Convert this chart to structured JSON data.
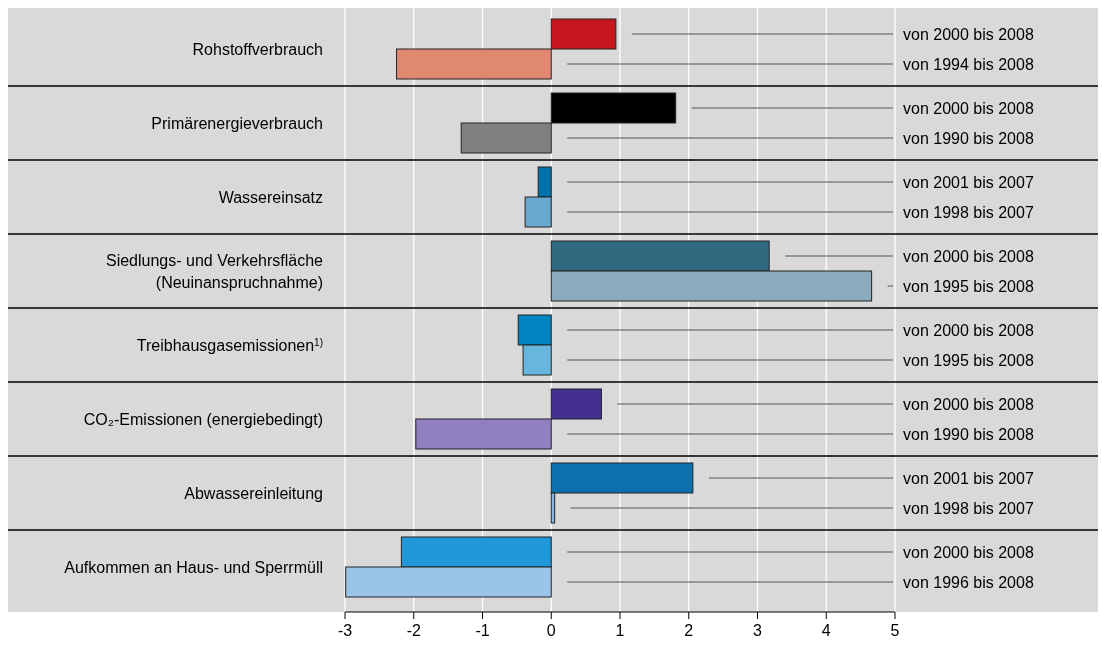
{
  "chart_data": {
    "type": "bar",
    "orientation": "horizontal",
    "categories": [
      "Rohstoffverbrauch",
      "Primärenergieverbrauch",
      "Wassereinsatz",
      "Siedlungs- und Verkehrsfläche\n(Neuinanspruchnahme)",
      "Treibhausgasemissionen$^{1)}$",
      "CO₂-Emissionen (energiebedingt)",
      "Abwassereinleitung",
      "Aufkommen an Haus- und Sperrmüll"
    ],
    "series": [
      {
        "colors": [
          "#c4161c",
          "#000000",
          "#0072ac",
          "#306a80",
          "#0085c0",
          "#453090",
          "#0b70ac",
          "#1e98d8"
        ],
        "values": [
          0.94,
          1.81,
          -0.19,
          3.17,
          -0.48,
          0.73,
          2.06,
          -2.18
        ]
      },
      {
        "colors": [
          "#e08870",
          "#808080",
          "#6aa8d0",
          "#8aabbd",
          "#68b6de",
          "#9080c0",
          "#88b8e0",
          "#9ac4e8"
        ],
        "values": [
          -2.25,
          -1.31,
          -0.38,
          4.66,
          -0.41,
          -1.97,
          0.05,
          -2.99
        ]
      }
    ],
    "annotations": [
      "von 2000 bis 2008",
      "von 1994 bis 2008",
      "von 2000 bis 2008",
      "von 1990 bis 2008",
      "von 2001 bis 2007",
      "von 1998 bis 2007",
      "von 2000 bis 2008",
      "von 1995 bis 2008",
      "von 2000 bis 2008",
      "von 1995 bis 2008",
      "von 2000 bis 2008",
      "von 1990 bis 2008",
      "von 2001 bis 2007",
      "von 1998 bis 2007",
      "von 2000 bis 2008",
      "von 1996 bis 2008"
    ],
    "xlim": [
      -3,
      5
    ],
    "xticks": [
      -3,
      -2,
      -1,
      0,
      1,
      2,
      3,
      4,
      5
    ],
    "grid": "x"
  }
}
